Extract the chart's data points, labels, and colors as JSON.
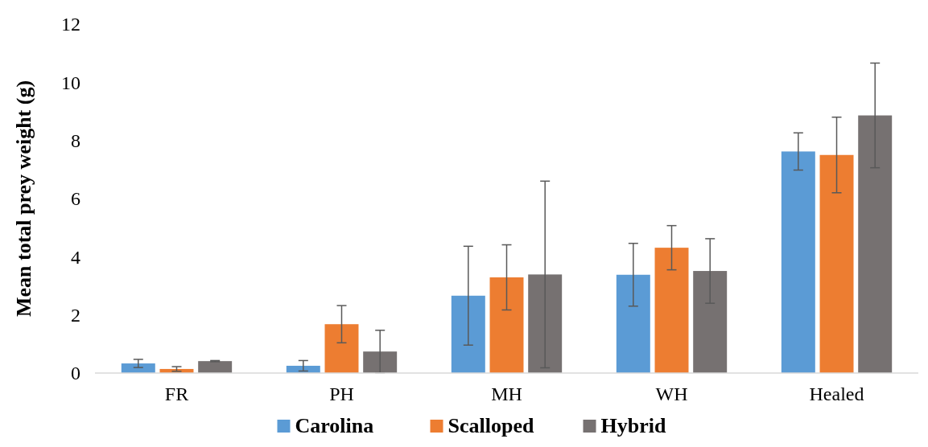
{
  "chart_data": {
    "type": "bar",
    "ylabel": "Mean total prey weight (g)",
    "categories": [
      "FR",
      "PH",
      "MH",
      "WH",
      "Healed"
    ],
    "series": [
      {
        "name": "Carolina",
        "color": "#5b9bd5",
        "values": [
          0.33,
          0.25,
          2.66,
          3.38,
          7.62
        ],
        "errors": [
          0.14,
          0.18,
          1.7,
          1.08,
          0.64
        ]
      },
      {
        "name": "Scalloped",
        "color": "#ed7d31",
        "values": [
          0.14,
          1.68,
          3.29,
          4.31,
          7.5
        ],
        "errors": [
          0.08,
          0.64,
          1.12,
          0.76,
          1.3
        ]
      },
      {
        "name": "Hybrid",
        "color": "#767171",
        "values": [
          0.41,
          0.74,
          3.39,
          3.51,
          8.86
        ],
        "errors": [
          0.02,
          0.73,
          3.21,
          1.11,
          1.8
        ]
      }
    ],
    "ylim": [
      0,
      12
    ],
    "yticks": [
      0,
      2,
      4,
      6,
      8,
      10,
      12
    ],
    "grid": false,
    "legend": "bottom"
  }
}
